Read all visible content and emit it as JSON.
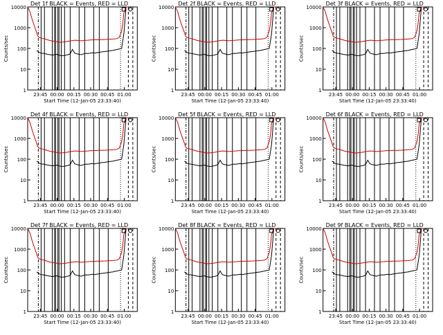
{
  "page": {
    "layout": "3x3 grid of detector count-rate plots"
  },
  "chart_data": {
    "type": "line",
    "panels": [
      {
        "title": "Det 1f  BLACK = Events, RED = LLD"
      },
      {
        "title": "Det 2f  BLACK = Events, RED = LLD"
      },
      {
        "title": "Det 3f  BLACK = Events, RED = LLD"
      },
      {
        "title": "Det 4f  BLACK = Events, RED = LLD"
      },
      {
        "title": "Det 5f  BLACK = Events, RED = LLD"
      },
      {
        "title": "Det 6f  BLACK = Events, RED = LLD"
      },
      {
        "title": "Det 7f  BLACK = Events, RED = LLD"
      },
      {
        "title": "Det 8f  BLACK = Events, RED = LLD"
      },
      {
        "title": "Det 9f  BLACK = Events, RED = LLD"
      }
    ],
    "ylabel": "Counts/sec",
    "xlabel": "Start Time (12-Jan-05 23:33:40)",
    "y_scale": "log",
    "ylim": [
      1,
      10000
    ],
    "y_ticks": [
      "1",
      "10",
      "100",
      "1000",
      "10000"
    ],
    "x_ticks": [
      "23:45",
      "00:00",
      "00:15",
      "00:30",
      "00:45",
      "01:00"
    ],
    "x_tick_minutes": [
      11.33,
      26.33,
      41.33,
      56.33,
      71.33,
      86.33
    ],
    "xlim_minutes": [
      0,
      98
    ],
    "series": [
      {
        "name": "Events",
        "color": "#000000",
        "x": [
          8,
          9,
          10,
          11,
          12,
          14,
          16,
          18,
          20,
          22,
          24,
          26,
          28,
          30,
          32,
          34,
          36,
          38,
          40,
          42,
          44,
          46,
          48,
          50,
          52,
          54,
          56,
          58,
          60,
          62,
          64,
          66,
          68,
          70,
          72,
          74,
          76,
          78,
          80,
          82,
          84,
          86,
          88
        ],
        "y": [
          80,
          75,
          65,
          62,
          60,
          58,
          55,
          52,
          50,
          48,
          50,
          52,
          48,
          45,
          45,
          47,
          50,
          55,
          90,
          60,
          55,
          52,
          50,
          55,
          58,
          57,
          60,
          62,
          60,
          63,
          65,
          68,
          70,
          72,
          75,
          78,
          80,
          85,
          90,
          95,
          100,
          500,
          10000
        ]
      },
      {
        "name": "LLD",
        "color": "#cc0000",
        "x": [
          0,
          2,
          4,
          6,
          8,
          9,
          10,
          11,
          12,
          14,
          16,
          18,
          20,
          22,
          24,
          26,
          28,
          30,
          32,
          34,
          36,
          38,
          40,
          42,
          44,
          46,
          48,
          50,
          52,
          54,
          56,
          58,
          60,
          62,
          64,
          66,
          68,
          70,
          72,
          74,
          76,
          78,
          80,
          82,
          84,
          85,
          86,
          88,
          90
        ],
        "y": [
          10000,
          6000,
          2500,
          1200,
          600,
          400,
          350,
          330,
          320,
          300,
          280,
          260,
          240,
          230,
          220,
          210,
          200,
          200,
          205,
          210,
          220,
          230,
          240,
          250,
          245,
          240,
          235,
          240,
          245,
          250,
          255,
          260,
          262,
          264,
          266,
          268,
          270,
          272,
          275,
          280,
          285,
          290,
          300,
          350,
          700,
          1500,
          5000,
          10000,
          10000
        ]
      }
    ],
    "vertical_lines_minutes": [
      12,
      15,
      22,
      24,
      25,
      27,
      28,
      30,
      33,
      38,
      46,
      51,
      59,
      64,
      72
    ],
    "dashdot_line_minutes": [
      9.5
    ],
    "dotted_line_minutes": [
      83
    ],
    "dashed_line_minutes": [
      90,
      94
    ],
    "legend_placement": "top-right (small box markers at top)"
  }
}
